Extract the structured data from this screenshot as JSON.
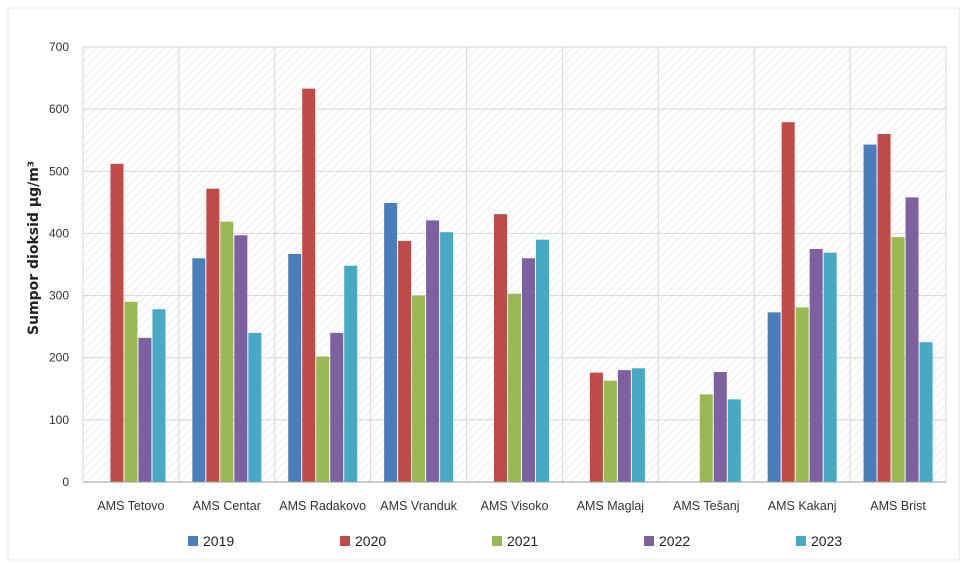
{
  "chart_data": {
    "type": "bar",
    "title": "",
    "xlabel": "",
    "ylabel": "Sumpor dioksid  µg/m³",
    "ylim": [
      0,
      700
    ],
    "yticks": [
      0,
      100,
      200,
      300,
      400,
      500,
      600,
      700
    ],
    "grid": true,
    "legend_position": "bottom",
    "categories": [
      "AMS Tetovo",
      "AMS Centar",
      "AMS Radakovo",
      "AMS Vranduk",
      "AMS Visoko",
      "AMS Maglaj",
      "AMS Tešanj",
      "AMS Kakanj",
      "AMS Brist"
    ],
    "series": [
      {
        "name": "2019",
        "color": "#4a7ebb",
        "values": [
          null,
          360,
          367,
          449,
          null,
          null,
          null,
          273,
          543
        ]
      },
      {
        "name": "2020",
        "color": "#be4b48",
        "values": [
          512,
          472,
          633,
          388,
          431,
          176,
          null,
          579,
          560
        ]
      },
      {
        "name": "2021",
        "color": "#98b954",
        "values": [
          290,
          419,
          202,
          300,
          303,
          163,
          141,
          281,
          394
        ]
      },
      {
        "name": "2022",
        "color": "#7d60a0",
        "values": [
          232,
          397,
          240,
          421,
          360,
          180,
          177,
          375,
          458
        ]
      },
      {
        "name": "2023",
        "color": "#46aac5",
        "values": [
          278,
          240,
          348,
          402,
          390,
          183,
          133,
          369,
          225
        ]
      }
    ]
  }
}
